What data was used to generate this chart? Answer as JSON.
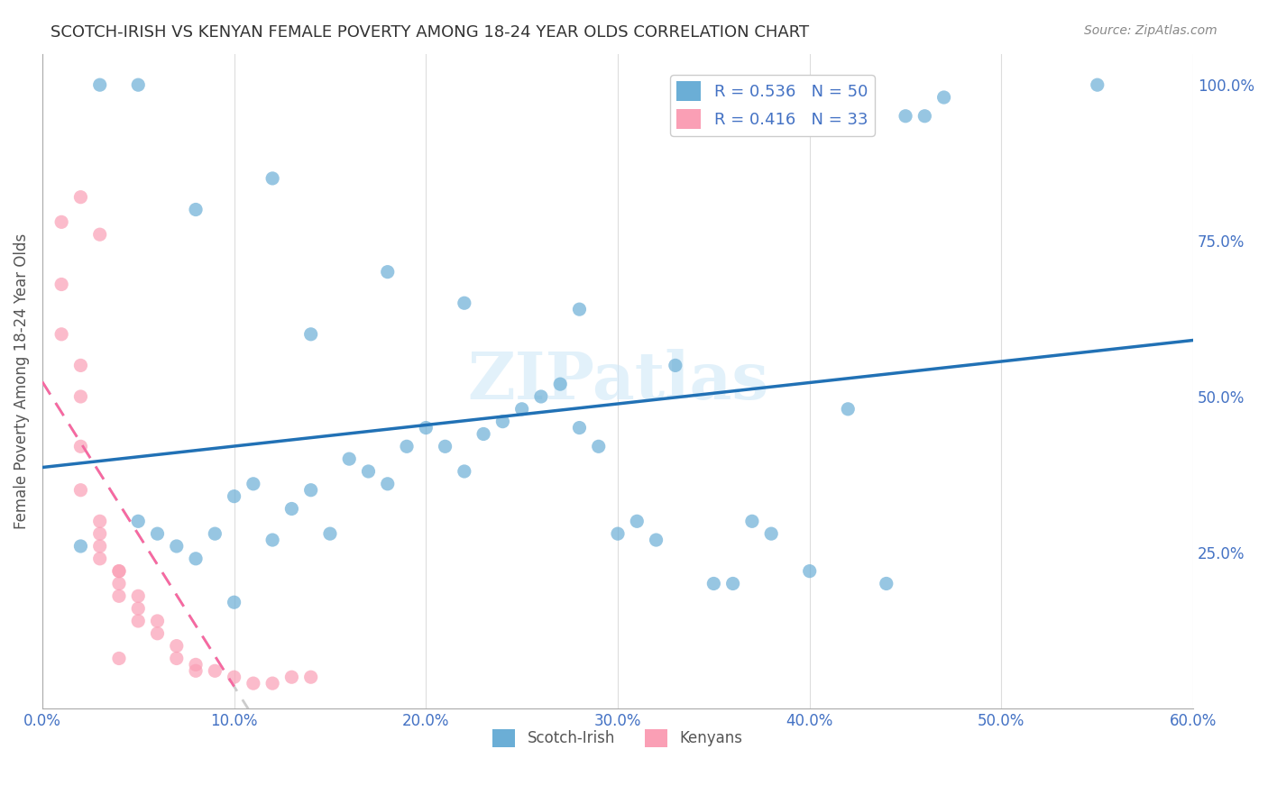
{
  "title": "SCOTCH-IRISH VS KENYAN FEMALE POVERTY AMONG 18-24 YEAR OLDS CORRELATION CHART",
  "source": "Source: ZipAtlas.com",
  "xlabel_bottom": "",
  "ylabel": "Female Poverty Among 18-24 Year Olds",
  "xmin": 0.0,
  "xmax": 0.6,
  "ymin": 0.0,
  "ymax": 1.05,
  "xticks": [
    0.0,
    0.1,
    0.2,
    0.3,
    0.4,
    0.5,
    0.6
  ],
  "yticks_right": [
    0.25,
    0.5,
    0.75,
    1.0
  ],
  "ytick_labels_right": [
    "25.0%",
    "50.0%",
    "75.0%",
    "100.0%"
  ],
  "xtick_labels": [
    "0.0%",
    "10.0%",
    "20.0%",
    "30.0%",
    "40.0%",
    "50.0%",
    "60.0%"
  ],
  "watermark": "ZIPatlas",
  "legend_r1": "R = 0.536",
  "legend_n1": "N = 50",
  "legend_r2": "R = 0.416",
  "legend_n2": "N = 33",
  "blue_color": "#6baed6",
  "pink_color": "#fa9fb5",
  "blue_line_color": "#2171b5",
  "pink_line_color": "#f768a1",
  "title_color": "#333333",
  "axis_color": "#4472c4",
  "grid_color": "#dddddd",
  "scotch_irish_x": [
    0.02,
    0.05,
    0.06,
    0.07,
    0.08,
    0.09,
    0.1,
    0.11,
    0.12,
    0.13,
    0.14,
    0.15,
    0.16,
    0.17,
    0.18,
    0.19,
    0.2,
    0.21,
    0.22,
    0.23,
    0.24,
    0.25,
    0.26,
    0.27,
    0.28,
    0.29,
    0.3,
    0.31,
    0.32,
    0.33,
    0.35,
    0.36,
    0.37,
    0.38,
    0.4,
    0.42,
    0.44,
    0.45,
    0.46,
    0.47,
    0.22,
    0.08,
    0.18,
    0.14,
    0.12,
    0.28,
    0.05,
    0.55,
    0.03,
    0.1
  ],
  "scotch_irish_y": [
    0.26,
    0.3,
    0.28,
    0.26,
    0.24,
    0.28,
    0.34,
    0.36,
    0.27,
    0.32,
    0.35,
    0.28,
    0.4,
    0.38,
    0.36,
    0.42,
    0.45,
    0.42,
    0.38,
    0.44,
    0.46,
    0.48,
    0.5,
    0.52,
    0.45,
    0.42,
    0.28,
    0.3,
    0.27,
    0.55,
    0.2,
    0.2,
    0.3,
    0.28,
    0.22,
    0.48,
    0.2,
    0.95,
    0.95,
    0.98,
    0.65,
    0.8,
    0.7,
    0.6,
    0.85,
    0.64,
    1.0,
    1.0,
    1.0,
    0.17
  ],
  "kenyans_x": [
    0.01,
    0.01,
    0.01,
    0.02,
    0.02,
    0.02,
    0.02,
    0.03,
    0.03,
    0.03,
    0.03,
    0.04,
    0.04,
    0.04,
    0.04,
    0.05,
    0.05,
    0.05,
    0.06,
    0.06,
    0.07,
    0.07,
    0.08,
    0.08,
    0.09,
    0.1,
    0.11,
    0.12,
    0.13,
    0.14,
    0.02,
    0.03,
    0.04
  ],
  "kenyans_y": [
    0.78,
    0.68,
    0.6,
    0.55,
    0.5,
    0.42,
    0.35,
    0.3,
    0.28,
    0.26,
    0.24,
    0.22,
    0.22,
    0.2,
    0.18,
    0.18,
    0.16,
    0.14,
    0.14,
    0.12,
    0.1,
    0.08,
    0.07,
    0.06,
    0.06,
    0.05,
    0.04,
    0.04,
    0.05,
    0.05,
    0.82,
    0.76,
    0.08
  ]
}
